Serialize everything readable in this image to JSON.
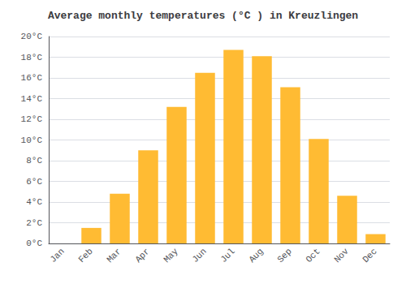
{
  "chart_data": {
    "type": "bar",
    "title": "Average monthly temperatures (°C ) in Kreuzlingen",
    "categories": [
      "Jan",
      "Feb",
      "Mar",
      "Apr",
      "May",
      "Jun",
      "Jul",
      "Aug",
      "Sep",
      "Oct",
      "Nov",
      "Dec"
    ],
    "values": [
      0.0,
      1.5,
      4.8,
      9.0,
      13.2,
      16.5,
      18.7,
      18.1,
      15.1,
      10.1,
      4.6,
      0.9
    ],
    "color": "#FFBB33",
    "ylim": [
      0,
      20
    ],
    "yticks": [
      {
        "value": 0,
        "label": "0°C"
      },
      {
        "value": 2,
        "label": "2°C"
      },
      {
        "value": 4,
        "label": "4°C"
      },
      {
        "value": 6,
        "label": "6°C"
      },
      {
        "value": 8,
        "label": "8°C"
      },
      {
        "value": 10,
        "label": "10°C"
      },
      {
        "value": 12,
        "label": "12°C"
      },
      {
        "value": 14,
        "label": "14°C"
      },
      {
        "value": 16,
        "label": "16°C"
      },
      {
        "value": 18,
        "label": "18°C"
      },
      {
        "value": 20,
        "label": "20°C"
      }
    ],
    "grid": true
  }
}
